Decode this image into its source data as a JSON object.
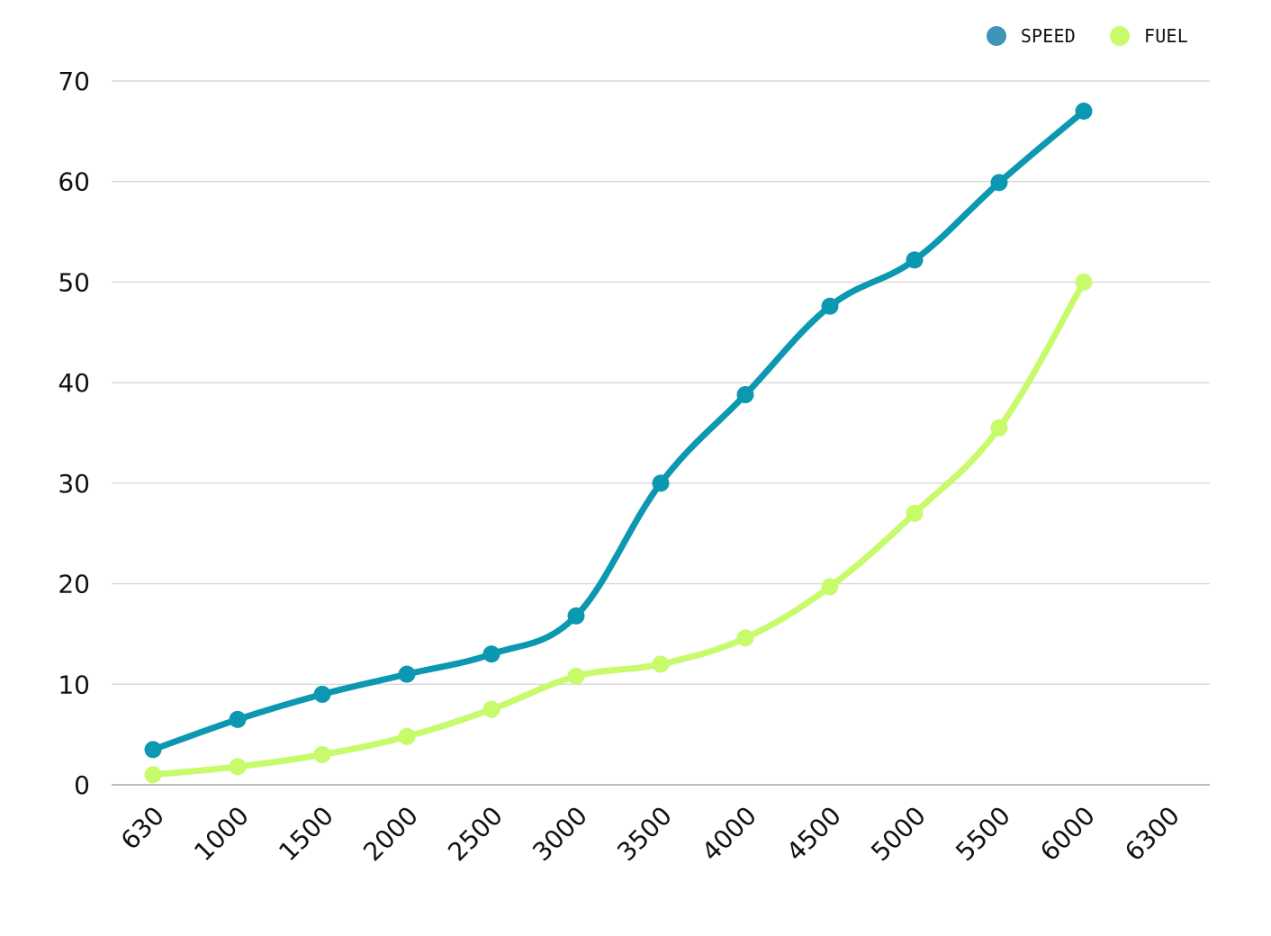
{
  "chart_data": {
    "type": "line",
    "categories": [
      "630",
      "1000",
      "1500",
      "2000",
      "2500",
      "3000",
      "3500",
      "4000",
      "4500",
      "5000",
      "5500",
      "6000",
      "6300"
    ],
    "series": [
      {
        "name": "SPEED",
        "color": "#0b98b0",
        "values": [
          3.5,
          6.5,
          9,
          11,
          13,
          16.8,
          30,
          38.8,
          47.6,
          52.2,
          59.9,
          67,
          null
        ]
      },
      {
        "name": "FUEL",
        "color": "#c7fb6c",
        "values": [
          1,
          1.8,
          3,
          4.8,
          7.5,
          10.8,
          12,
          14.6,
          19.7,
          27,
          35.5,
          50,
          null
        ]
      }
    ],
    "ylim": [
      0,
      70
    ],
    "yticks": [
      0,
      10,
      20,
      30,
      40,
      50,
      60,
      70
    ],
    "grid": true,
    "legend_position": "top-right",
    "colors": {
      "grid": "#d7d7d7",
      "axis": "#bdbdbd",
      "speed_legend": "#3d96b8",
      "fuel_legend": "#c7fb6c",
      "text": "#111111"
    }
  }
}
